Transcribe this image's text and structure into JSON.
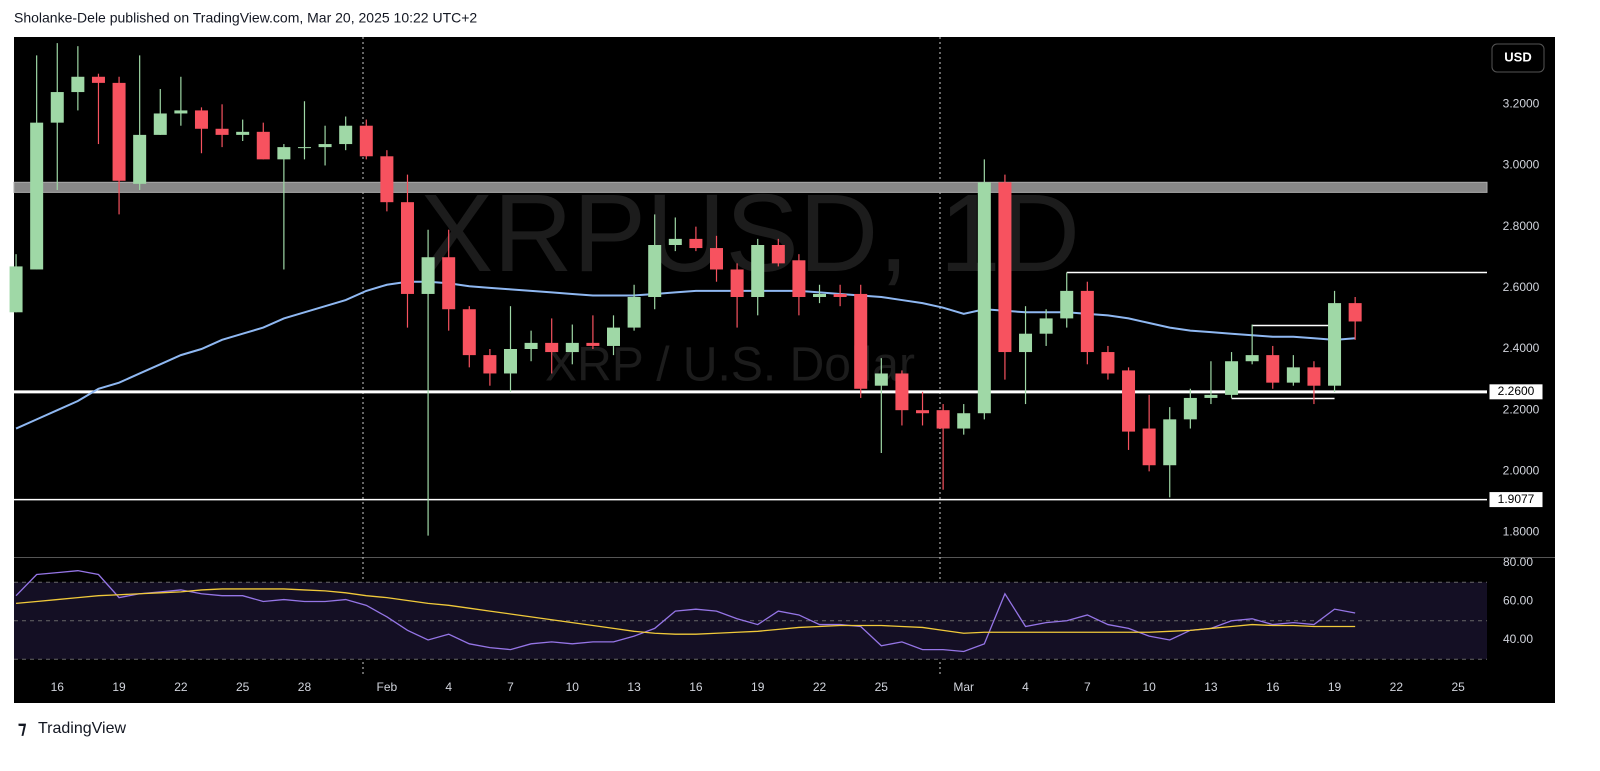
{
  "header": "Sholanke-Dele published on TradingView.com, Mar 20, 2025 10:22 UTC+2",
  "footer": "TradingView",
  "currency_button": "USD",
  "chart_data": {
    "type": "candlestick",
    "watermark": "XRPUSD, 1D",
    "watermark_subtitle": "XRP / U.S. Dollar",
    "up_color": "#9fd8a6",
    "down_color": "#f7525f",
    "ma_color": "#8fb8f2",
    "xlim": [
      -0.1,
      71.4
    ],
    "ylim": [
      1.72,
      3.42
    ],
    "xticks": [
      {
        "value": 2,
        "label": "16"
      },
      {
        "value": 5,
        "label": "19"
      },
      {
        "value": 8,
        "label": "22"
      },
      {
        "value": 11,
        "label": "25"
      },
      {
        "value": 14,
        "label": "28"
      },
      {
        "value": 18,
        "label": "Feb"
      },
      {
        "value": 21,
        "label": "4"
      },
      {
        "value": 24,
        "label": "7"
      },
      {
        "value": 27,
        "label": "10"
      },
      {
        "value": 30,
        "label": "13"
      },
      {
        "value": 33,
        "label": "16"
      },
      {
        "value": 36,
        "label": "19"
      },
      {
        "value": 39,
        "label": "22"
      },
      {
        "value": 42,
        "label": "25"
      },
      {
        "value": 46,
        "label": "Mar"
      },
      {
        "value": 49,
        "label": "4"
      },
      {
        "value": 52,
        "label": "7"
      },
      {
        "value": 55,
        "label": "10"
      },
      {
        "value": 58,
        "label": "13"
      },
      {
        "value": 61,
        "label": "16"
      },
      {
        "value": 64,
        "label": "19"
      },
      {
        "value": 67,
        "label": "22"
      },
      {
        "value": 70,
        "label": "25"
      }
    ],
    "yticks": [
      {
        "value": 1.8,
        "label": "1.8000"
      },
      {
        "value": 2.0,
        "label": "2.0000"
      },
      {
        "value": 2.2,
        "label": "2.2000"
      },
      {
        "value": 2.4,
        "label": "2.4000"
      },
      {
        "value": 2.6,
        "label": "2.6000"
      },
      {
        "value": 2.8,
        "label": "2.8000"
      },
      {
        "value": 3.0,
        "label": "3.0000"
      },
      {
        "value": 3.2,
        "label": "3.2000"
      }
    ],
    "open": [
      2.52,
      2.66,
      3.14,
      3.24,
      3.29,
      3.27,
      2.94,
      3.1,
      3.17,
      3.18,
      3.12,
      3.1,
      3.11,
      3.02,
      3.06,
      3.06,
      3.07,
      3.13,
      3.03,
      2.88,
      2.58,
      2.7,
      2.53,
      2.38,
      2.32,
      2.4,
      2.42,
      2.39,
      2.42,
      2.41,
      2.47,
      2.57,
      2.74,
      2.76,
      2.73,
      2.66,
      2.57,
      2.74,
      2.69,
      2.57,
      2.58,
      2.58,
      2.28,
      2.32,
      2.2,
      2.2,
      2.14,
      2.19,
      2.945,
      2.39,
      2.45,
      2.5,
      2.59,
      2.39,
      2.33,
      2.14,
      2.02,
      2.17,
      2.24,
      2.25,
      2.36,
      2.38,
      2.29,
      2.34,
      2.28,
      2.55
    ],
    "high": [
      2.71,
      3.36,
      3.4,
      3.39,
      3.3,
      3.29,
      3.36,
      3.25,
      3.29,
      3.19,
      3.2,
      3.15,
      3.14,
      3.07,
      3.21,
      3.13,
      3.16,
      3.15,
      3.05,
      2.97,
      2.79,
      2.79,
      2.54,
      2.4,
      2.54,
      2.46,
      2.5,
      2.48,
      2.51,
      2.51,
      2.61,
      2.84,
      2.83,
      2.8,
      2.77,
      2.68,
      2.76,
      2.76,
      2.71,
      2.61,
      2.61,
      2.61,
      2.37,
      2.33,
      2.26,
      2.22,
      2.22,
      3.02,
      2.97,
      2.54,
      2.53,
      2.65,
      2.62,
      2.41,
      2.34,
      2.25,
      2.21,
      2.27,
      2.36,
      2.39,
      2.48,
      2.41,
      2.38,
      2.36,
      2.59,
      2.57
    ],
    "low": [
      2.52,
      2.66,
      2.92,
      3.18,
      3.07,
      2.84,
      2.92,
      3.1,
      3.13,
      3.04,
      3.06,
      3.08,
      3.02,
      2.66,
      3.02,
      3.0,
      3.05,
      3.02,
      2.85,
      2.47,
      1.79,
      2.46,
      2.34,
      2.28,
      2.26,
      2.36,
      2.32,
      2.35,
      2.4,
      2.38,
      2.46,
      2.53,
      2.72,
      2.72,
      2.62,
      2.47,
      2.51,
      2.67,
      2.51,
      2.55,
      2.54,
      2.24,
      2.06,
      2.15,
      2.15,
      1.94,
      2.12,
      2.17,
      2.3,
      2.22,
      2.41,
      2.47,
      2.35,
      2.3,
      2.07,
      2.0,
      1.915,
      2.14,
      2.22,
      2.24,
      2.35,
      2.27,
      2.28,
      2.22,
      2.26,
      2.43
    ],
    "close": [
      2.67,
      3.14,
      3.24,
      3.29,
      3.27,
      2.95,
      3.1,
      3.17,
      3.18,
      3.12,
      3.1,
      3.11,
      3.02,
      3.06,
      3.06,
      3.07,
      3.13,
      3.03,
      2.88,
      2.58,
      2.7,
      2.53,
      2.38,
      2.32,
      2.4,
      2.42,
      2.39,
      2.42,
      2.41,
      2.47,
      2.57,
      2.74,
      2.76,
      2.73,
      2.66,
      2.57,
      2.74,
      2.68,
      2.57,
      2.58,
      2.57,
      2.27,
      2.32,
      2.2,
      2.19,
      2.14,
      2.19,
      2.945,
      2.39,
      2.45,
      2.5,
      2.59,
      2.39,
      2.32,
      2.13,
      2.02,
      2.17,
      2.24,
      2.25,
      2.36,
      2.38,
      2.29,
      2.34,
      2.28,
      2.55,
      2.49
    ],
    "ma": [
      2.14,
      2.17,
      2.2,
      2.23,
      2.27,
      2.29,
      2.32,
      2.35,
      2.38,
      2.4,
      2.43,
      2.45,
      2.47,
      2.5,
      2.52,
      2.54,
      2.56,
      2.59,
      2.61,
      2.62,
      2.62,
      2.615,
      2.605,
      2.6,
      2.595,
      2.59,
      2.585,
      2.58,
      2.575,
      2.575,
      2.575,
      2.58,
      2.585,
      2.59,
      2.59,
      2.59,
      2.59,
      2.59,
      2.59,
      2.585,
      2.58,
      2.575,
      2.57,
      2.56,
      2.55,
      2.535,
      2.515,
      2.53,
      2.525,
      2.52,
      2.52,
      2.52,
      2.515,
      2.51,
      2.5,
      2.485,
      2.47,
      2.46,
      2.455,
      2.45,
      2.445,
      2.44,
      2.44,
      2.435,
      2.43,
      2.435
    ],
    "zone": [
      2.912,
      2.945
    ],
    "price_labels": [
      {
        "value": 2.26,
        "label": "2.2600"
      },
      {
        "value": 1.9077,
        "label": "1.9077"
      }
    ],
    "segments": [
      {
        "value": 2.65,
        "from": 51
      },
      {
        "value": 2.477,
        "from": 60,
        "to": 64
      },
      {
        "value": 2.238,
        "from": 59,
        "to": 64
      }
    ],
    "rsi": {
      "ylim": [
        21.8,
        83.1
      ],
      "yticks": [
        {
          "value": 40,
          "label": "40.00"
        },
        {
          "value": 60,
          "label": "60.00"
        },
        {
          "value": 80,
          "label": "80.00"
        }
      ],
      "levels": [
        30,
        50,
        70
      ],
      "series": [
        {
          "color": "#9575e6",
          "values": [
            63,
            74,
            75,
            76,
            74,
            62,
            64,
            65,
            66,
            64,
            63,
            63,
            60,
            61,
            60,
            60,
            61,
            58,
            52,
            45,
            40,
            43,
            38,
            36,
            35,
            38,
            39,
            38,
            39,
            39,
            42,
            46,
            55,
            56,
            55,
            51,
            48,
            55,
            53,
            48,
            48,
            47,
            37,
            39,
            35,
            35,
            34,
            38,
            64,
            47,
            49,
            50,
            53,
            48,
            46,
            42,
            40,
            45,
            46,
            50,
            51,
            48,
            49,
            48,
            56,
            54
          ]
        },
        {
          "color": "#f0c93a",
          "values": [
            59,
            60,
            61,
            62,
            63,
            63.5,
            64,
            64.5,
            65,
            66,
            66.5,
            66.5,
            66.5,
            66.5,
            66,
            65.5,
            64.5,
            63,
            62,
            60.5,
            59,
            58,
            56.5,
            55,
            53.5,
            52,
            50.5,
            49,
            47.5,
            46,
            44.5,
            43.5,
            43,
            43,
            43.5,
            44,
            44.5,
            45.5,
            46.5,
            47,
            47.5,
            47.5,
            47.5,
            47,
            46.5,
            45,
            43.5,
            44,
            44,
            44,
            44,
            44,
            44,
            44,
            44,
            44,
            44.5,
            45,
            46,
            47,
            48,
            47.5,
            47.5,
            47,
            47,
            47
          ]
        }
      ]
    }
  }
}
